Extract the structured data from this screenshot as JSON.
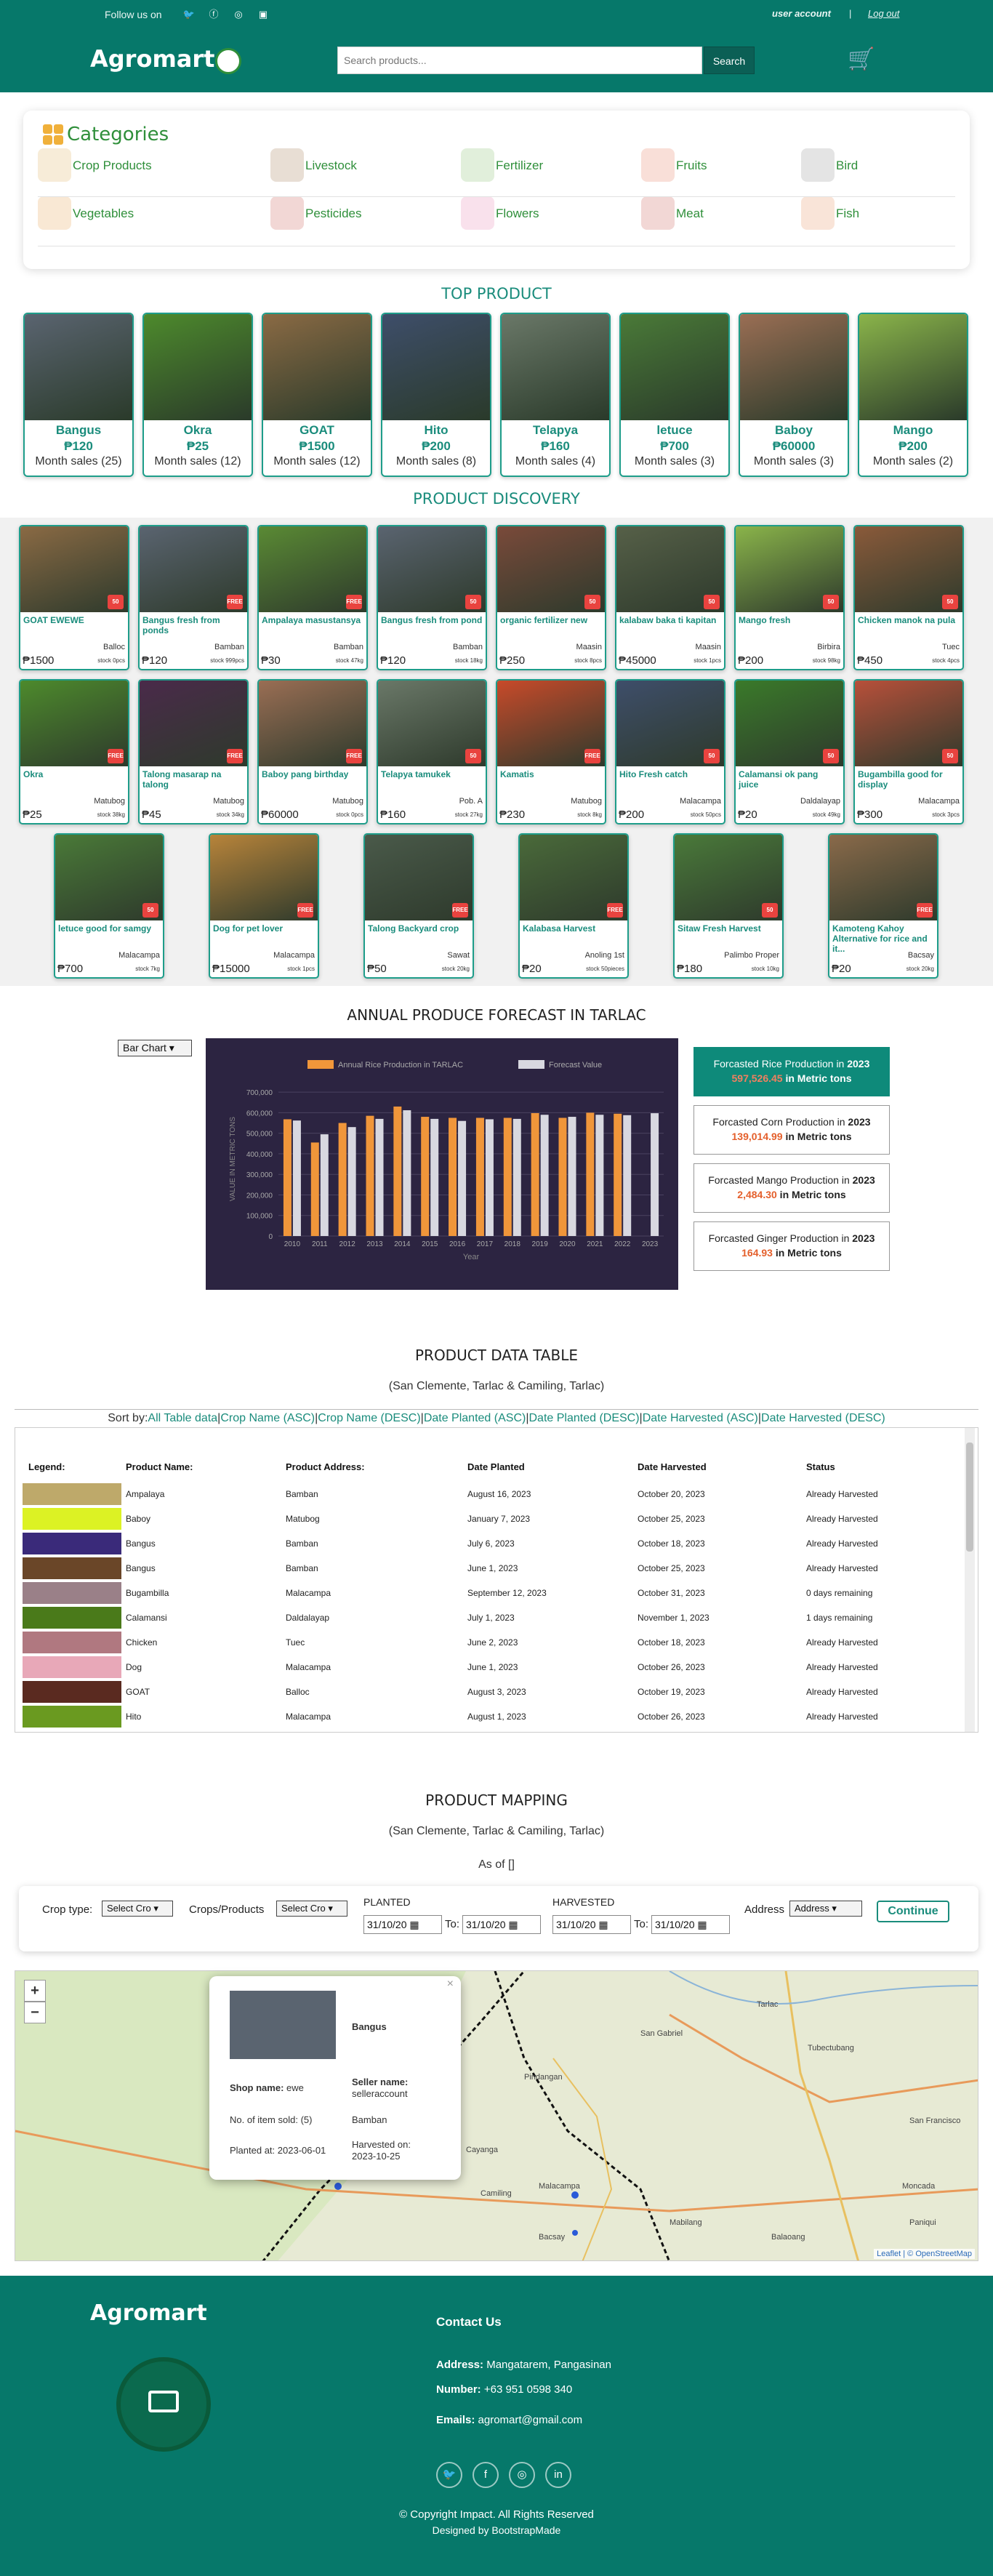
{
  "topbar": {
    "follow": "Follow us on",
    "account": "user account",
    "sep": "|",
    "logout": "Log out"
  },
  "header": {
    "brand": "Agromart",
    "search_placeholder": "Search products...",
    "search_button": "Search"
  },
  "categories": {
    "title": "Categories",
    "items": [
      "Crop Products",
      "Livestock",
      "Fertilizer",
      "Fruits",
      "Bird",
      "Vegetables",
      "Pesticides",
      "Flowers",
      "Meat",
      "Fish"
    ]
  },
  "top_product": {
    "title": "TOP PRODUCT",
    "items": [
      {
        "name": "Bangus",
        "price": "₱120",
        "sales": "Month sales (25)",
        "color": "#5a6470"
      },
      {
        "name": "Okra",
        "price": "₱25",
        "sales": "Month sales (12)",
        "color": "#4d8a2c"
      },
      {
        "name": "GOAT",
        "price": "₱1500",
        "sales": "Month sales (12)",
        "color": "#8a6a44"
      },
      {
        "name": "Hito",
        "price": "₱200",
        "sales": "Month sales (8)",
        "color": "#3e4e6a"
      },
      {
        "name": "Telapya",
        "price": "₱160",
        "sales": "Month sales (4)",
        "color": "#6a7868"
      },
      {
        "name": "letuce",
        "price": "₱700",
        "sales": "Month sales (3)",
        "color": "#4a7a38"
      },
      {
        "name": "Baboy",
        "price": "₱60000",
        "sales": "Month sales (3)",
        "color": "#9a6e54"
      },
      {
        "name": "Mango",
        "price": "₱200",
        "sales": "Month sales (2)",
        "color": "#8ab44a"
      }
    ]
  },
  "discovery": {
    "title": "PRODUCT DISCOVERY",
    "items": [
      {
        "name": "GOAT EWEWE",
        "loc": "Balloc",
        "price": "₱1500",
        "stock": "stock 0pcs",
        "badge": "50",
        "color": "#8a6a44"
      },
      {
        "name": "Bangus fresh from ponds",
        "loc": "Bamban",
        "price": "₱120",
        "stock": "stock 999pcs",
        "badge": "FREE",
        "color": "#5a6470"
      },
      {
        "name": "Ampalaya masustansya",
        "loc": "Bamban",
        "price": "₱30",
        "stock": "stock 47kg",
        "badge": "FREE",
        "color": "#5a8a34"
      },
      {
        "name": "Bangus fresh from pond",
        "loc": "Bamban",
        "price": "₱120",
        "stock": "stock 18kg",
        "badge": "50",
        "color": "#5a6470"
      },
      {
        "name": "organic fertilizer new",
        "loc": "Maasin",
        "price": "₱250",
        "stock": "stock 8pcs",
        "badge": "50",
        "color": "#7a4a3a"
      },
      {
        "name": "kalabaw baka ti kapitan",
        "loc": "Maasin",
        "price": "₱45000",
        "stock": "stock 1pcs",
        "badge": "50",
        "color": "#566048"
      },
      {
        "name": "Mango fresh",
        "loc": "Birbira",
        "price": "₱200",
        "stock": "stock 98kg",
        "badge": "50",
        "color": "#8ab44a"
      },
      {
        "name": "Chicken manok na pula",
        "loc": "Tuec",
        "price": "₱450",
        "stock": "stock 4pcs",
        "badge": "50",
        "color": "#8a5a3a"
      },
      {
        "name": "Okra",
        "loc": "Matubog",
        "price": "₱25",
        "stock": "stock 38kg",
        "badge": "FREE",
        "color": "#4d8a2c"
      },
      {
        "name": "Talong masarap na talong",
        "loc": "Matubog",
        "price": "₱45",
        "stock": "stock 34kg",
        "badge": "FREE",
        "color": "#4a2a4a"
      },
      {
        "name": "Baboy pang birthday",
        "loc": "Matubog",
        "price": "₱60000",
        "stock": "stock 0pcs",
        "badge": "FREE",
        "color": "#9a6e54"
      },
      {
        "name": "Telapya tamukek",
        "loc": "Pob. A",
        "price": "₱160",
        "stock": "stock 27kg",
        "badge": "50",
        "color": "#6a7868"
      },
      {
        "name": "Kamatis",
        "loc": "Matubog",
        "price": "₱230",
        "stock": "stock 8kg",
        "badge": "FREE",
        "color": "#c84a2a"
      },
      {
        "name": "Hito Fresh catch",
        "loc": "Malacampa",
        "price": "₱200",
        "stock": "stock 50pcs",
        "badge": "50",
        "color": "#3e4e6a"
      },
      {
        "name": "Calamansi ok pang juice",
        "loc": "Daldalayap",
        "price": "₱20",
        "stock": "stock 49kg",
        "badge": "50",
        "color": "#3a7a2a"
      },
      {
        "name": "Bugambilla good for display",
        "loc": "Malacampa",
        "price": "₱300",
        "stock": "stock 3pcs",
        "badge": "50",
        "color": "#b8503a"
      },
      {
        "name": "letuce good for samgy",
        "loc": "Malacampa",
        "price": "₱700",
        "stock": "stock 7kg",
        "badge": "50",
        "color": "#4a7a38"
      },
      {
        "name": "Dog for pet lover",
        "loc": "Malacampa",
        "price": "₱15000",
        "stock": "stock 1pcs",
        "badge": "FREE",
        "color": "#b8843a"
      },
      {
        "name": "Talong Backyard crop",
        "loc": "Sawat",
        "price": "₱50",
        "stock": "stock 20kg",
        "badge": "FREE",
        "color": "#4a5a4a"
      },
      {
        "name": "Kalabasa Harvest",
        "loc": "Anoling 1st",
        "price": "₱20",
        "stock": "stock 50pieces",
        "badge": "FREE",
        "color": "#4a6a3a"
      },
      {
        "name": "Sitaw Fresh Harvest",
        "loc": "Palimbo Proper",
        "price": "₱180",
        "stock": "stock 10kg",
        "badge": "50",
        "color": "#4a7a3a"
      },
      {
        "name": "Kamoteng Kahoy Alternative for rice and it...",
        "loc": "Bacsay",
        "price": "₱20",
        "stock": "stock 20kg",
        "badge": "FREE",
        "color": "#8a6a4a"
      }
    ]
  },
  "forecast": {
    "title": "ANNUAL PRODUCE FORECAST IN TARLAC",
    "select": "Bar Chart",
    "cards": [
      {
        "pre": "Forcasted Rice Production in ",
        "year": "2023",
        "num": "597,526.45",
        "post": " in Metric tons",
        "active": true
      },
      {
        "pre": "Forcasted Corn Production in ",
        "year": "2023",
        "num": "139,014.99",
        "post": " in Metric tons",
        "active": false
      },
      {
        "pre": "Forcasted Mango Production in ",
        "year": "2023",
        "num": "2,484.30",
        "post": " in Metric tons",
        "active": false
      },
      {
        "pre": "Forcasted Ginger Production in ",
        "year": "2023",
        "num": "164.93",
        "post": " in Metric tons",
        "active": false
      }
    ]
  },
  "chart_data": {
    "type": "bar",
    "categories": [
      "2010",
      "2011",
      "2012",
      "2013",
      "2014",
      "2015",
      "2016",
      "2017",
      "2018",
      "2019",
      "2020",
      "2021",
      "2022",
      "2023"
    ],
    "series": [
      {
        "name": "Annual Rice Production in TARLAC",
        "color": "#f0963a",
        "values": [
          568000,
          455000,
          550000,
          585000,
          630000,
          580000,
          575000,
          575000,
          575000,
          598000,
          575000,
          600000,
          595000,
          null
        ]
      },
      {
        "name": "Forecast Value",
        "color": "#d8d8e0",
        "values": [
          562000,
          495000,
          530000,
          570000,
          612000,
          570000,
          560000,
          568000,
          570000,
          590000,
          580000,
          590000,
          588000,
          597526.45
        ]
      }
    ],
    "ylim": [
      0,
      750000
    ],
    "yticks": [
      "0",
      "100,000",
      "200,000",
      "300,000",
      "400,000",
      "500,000",
      "600,000",
      "700,000"
    ],
    "ylabel": "VALUE IN METRIC TONS",
    "xlabel": "Year",
    "grid": true,
    "legend": "top"
  },
  "table": {
    "title": "PRODUCT DATA TABLE",
    "subtitle": "(San Clemente, Tarlac & Camiling, Tarlac)",
    "sort_label": "Sort by:",
    "sort_links": [
      "All Table data",
      "Crop Name (ASC)",
      "Crop Name (DESC)",
      "Date Planted (ASC)",
      "Date Planted (DESC)",
      "Date Harvested (ASC)",
      "Date Harvested (DESC)"
    ],
    "headers": [
      "Legend:",
      "Product Name:",
      "Product Address:",
      "Date Planted",
      "Date Harvested",
      "Status"
    ],
    "rows": [
      {
        "color": "#bea96a",
        "name": "Ampalaya",
        "addr": "Bamban",
        "planted": "August 16, 2023",
        "harvested": "October 20, 2023",
        "status": "Already Harvested"
      },
      {
        "color": "#dcf224",
        "name": "Baboy",
        "addr": "Matubog",
        "planted": "January 7, 2023",
        "harvested": "October 25, 2023",
        "status": "Already Harvested"
      },
      {
        "color": "#3a2a7a",
        "name": "Bangus",
        "addr": "Bamban",
        "planted": "July 6, 2023",
        "harvested": "October 18, 2023",
        "status": "Already Harvested"
      },
      {
        "color": "#6a4628",
        "name": "Bangus",
        "addr": "Bamban",
        "planted": "June 1, 2023",
        "harvested": "October 25, 2023",
        "status": "Already Harvested"
      },
      {
        "color": "#9a8088",
        "name": "Bugambilla",
        "addr": "Malacampa",
        "planted": "September 12, 2023",
        "harvested": "October 31, 2023",
        "status": "0 days remaining"
      },
      {
        "color": "#4a7a1a",
        "name": "Calamansi",
        "addr": "Daldalayap",
        "planted": "July 1, 2023",
        "harvested": "November 1, 2023",
        "status": "1 days remaining"
      },
      {
        "color": "#b07880",
        "name": "Chicken",
        "addr": "Tuec",
        "planted": "June 2, 2023",
        "harvested": "October 18, 2023",
        "status": "Already Harvested"
      },
      {
        "color": "#e8a8b8",
        "name": "Dog",
        "addr": "Malacampa",
        "planted": "June 1, 2023",
        "harvested": "October 26, 2023",
        "status": "Already Harvested"
      },
      {
        "color": "#5a2a20",
        "name": "GOAT",
        "addr": "Balloc",
        "planted": "August 3, 2023",
        "harvested": "October 19, 2023",
        "status": "Already Harvested"
      },
      {
        "color": "#6a9a20",
        "name": "Hito",
        "addr": "Malacampa",
        "planted": "August 1, 2023",
        "harvested": "October 26, 2023",
        "status": "Already Harvested"
      }
    ]
  },
  "mapping": {
    "title": "PRODUCT MAPPING",
    "subtitle": "(San Clemente, Tarlac & Camiling, Tarlac)",
    "asof": "As of []",
    "crop_type_label": "Crop type:",
    "crop_type_value": "Select Cro",
    "crops_label": "Crops/Products",
    "crops_value": "Select Cro",
    "planted_label": "PLANTED",
    "harvested_label": "HARVESTED",
    "date1": "31/10/20",
    "to1": "To:",
    "date2": "31/10/20",
    "date3": "31/10/20",
    "to2": "To:",
    "date4": "31/10/20",
    "address_label": "Address",
    "address_value": "Address",
    "continue": "Continue",
    "attribution": "Leaflet | © OpenStreetMap",
    "popup": {
      "title": "Bangus",
      "shop_label": "Shop name:",
      "shop_value": "ewe",
      "seller_label": "Seller name:",
      "seller_value": "selleraccount",
      "sold_label": "No. of item sold:",
      "sold_value": "(5)",
      "addr": "Bamban",
      "planted_label": "Planted at:",
      "planted_value": "2023-06-01",
      "harvested_label": "Harvested on:",
      "harvested_value": "2023-10-25"
    },
    "places": [
      "Tubectubang",
      "San Gabriel",
      "Pindangan",
      "Malacampa",
      "Bacsay",
      "Camiling",
      "Paniqui",
      "Moncada",
      "Mabilang",
      "San Francisco",
      "Cayanga",
      "Balaoang",
      "Tarlac"
    ]
  },
  "footer": {
    "brand": "Agromart",
    "contact_title": "Contact Us",
    "address_label": "Address:",
    "address": " Mangatarem, Pangasinan",
    "number_label": "Number:",
    "number": " +63 951 0598 340",
    "emails_label": "Emails:",
    "emails": " agromart@gmail.com",
    "copyright": "© Copyright Impact. All Rights Reserved",
    "designed": "Designed by BootstrapMade"
  }
}
